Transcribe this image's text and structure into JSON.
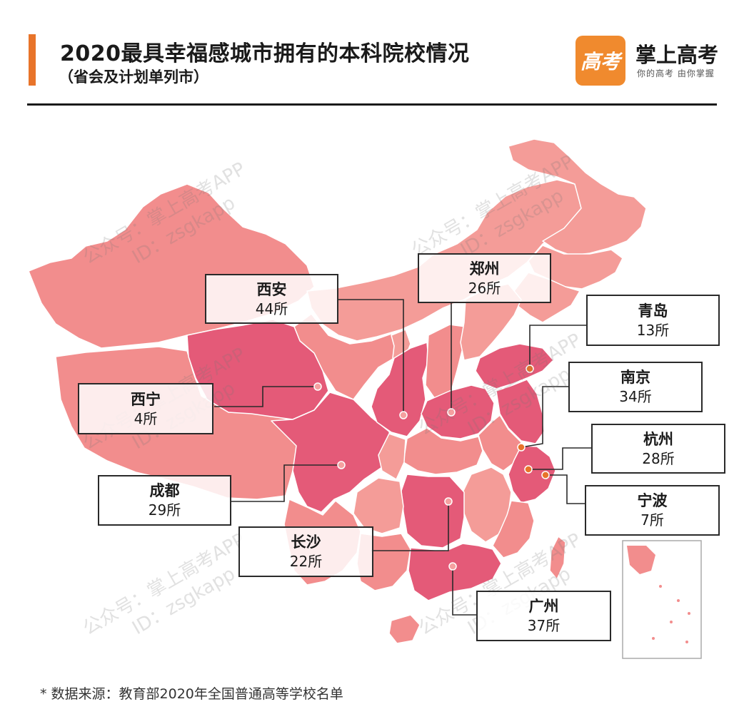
{
  "header": {
    "title": "2020最具幸福感城市拥有的本科院校情况",
    "subtitle": "（省会及计划单列市）"
  },
  "brand": {
    "logo_glyph": "高考",
    "name": "掌上高考",
    "slogan": "你的高考  由你掌握"
  },
  "watermark": {
    "line1": "公众号：掌上高考APP",
    "line2": "ID：zsgkapp"
  },
  "colors": {
    "accent": "#e8742a",
    "light": "#f49c98",
    "medium": "#ee8585",
    "dark": "#e45a78",
    "dot": "#e8742a"
  },
  "cities": [
    {
      "id": "xian",
      "name": "西安",
      "count": "44所"
    },
    {
      "id": "zhengzhou",
      "name": "郑州",
      "count": "26所"
    },
    {
      "id": "qingdao",
      "name": "青岛",
      "count": "13所"
    },
    {
      "id": "nanjing",
      "name": "南京",
      "count": "34所"
    },
    {
      "id": "xining",
      "name": "西宁",
      "count": "4所"
    },
    {
      "id": "hangzhou",
      "name": "杭州",
      "count": "28所"
    },
    {
      "id": "chengdu",
      "name": "成都",
      "count": "29所"
    },
    {
      "id": "ningbo",
      "name": "宁波",
      "count": "7所"
    },
    {
      "id": "changsha",
      "name": "长沙",
      "count": "22所"
    },
    {
      "id": "guangzhou",
      "name": "广州",
      "count": "37所"
    }
  ],
  "footnote": "* 数据来源：教育部2020年全国普通高等学校名单"
}
